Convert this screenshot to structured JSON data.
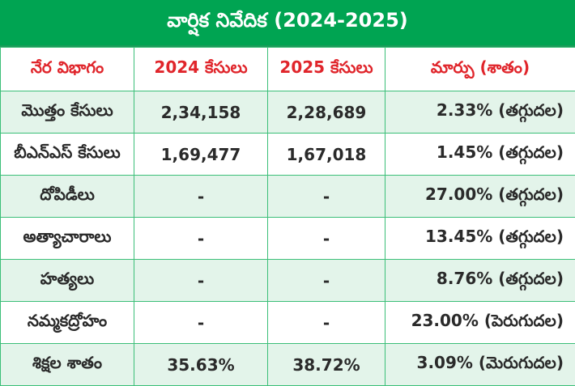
{
  "title": "వార్షిక నివేదిక (2024-2025)",
  "headers": [
    "నేర విభాగం",
    "2024 కేసులు",
    "2025 కేసులు",
    "మార్పు (శాతం)"
  ],
  "rows": [
    {
      "category": "మొత్తం కేసులు",
      "y2024": "2,34,158",
      "y2025": "2,28,689",
      "change": "2.33% (తగ్గుదల)"
    },
    {
      "category": "బీఎన్ఎస్ కేసులు",
      "y2024": "1,69,477",
      "y2025": "1,67,018",
      "change": "1.45% (తగ్గుదల)"
    },
    {
      "category": "దోపిడీలు",
      "y2024": "-",
      "y2025": "-",
      "change": "27.00% (తగ్గుదల)"
    },
    {
      "category": "అత్యాచారాలు",
      "y2024": "-",
      "y2025": "-",
      "change": "13.45% (తగ్గుదల)"
    },
    {
      "category": "హత్యలు",
      "y2024": "-",
      "y2025": "-",
      "change": "8.76% (తగ్గుదల)"
    },
    {
      "category": "నమ్మకద్రోహం",
      "y2024": "-",
      "y2025": "-",
      "change": "23.00% (పెరుగుదల)"
    },
    {
      "category": "శిక్షల శాతం",
      "y2024": "35.63%",
      "y2025": "38.72%",
      "change": "3.09% (మెరుగుదల)"
    }
  ],
  "colors": {
    "title_bg": "#00a452",
    "header_text": "#e0252b",
    "row_alt": "#e3f4ea",
    "border": "#3bbf78"
  }
}
